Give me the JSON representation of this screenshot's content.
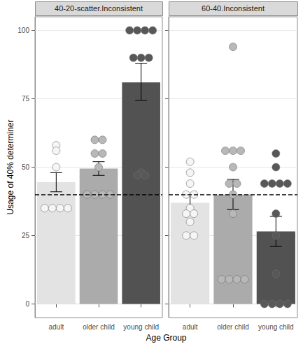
{
  "chart_data": {
    "type": "bar",
    "x_label": "Age Group",
    "y_label": "Usage of 40% determiner",
    "categories": [
      "adult",
      "older child",
      "young child"
    ],
    "colors": [
      "#e3e3e3",
      "#ababab",
      "#525252"
    ],
    "ylim": [
      -5,
      105
    ],
    "yticks": [
      0,
      25,
      50,
      75,
      100
    ],
    "grid": true,
    "reference_line": 40,
    "panels": [
      {
        "title": "40-20-scatter.Inconsistent",
        "values": [
          44.5,
          49.5,
          81
        ],
        "error_low": [
          41,
          47,
          74.5
        ],
        "error_high": [
          48,
          52,
          88
        ],
        "points": [
          [
            58,
            56,
            50,
            35,
            35,
            35,
            35
          ],
          [
            60,
            60,
            55,
            55,
            50,
            40,
            40,
            40,
            40
          ],
          [
            100,
            100,
            100,
            100,
            90,
            90,
            90,
            48,
            47,
            47
          ]
        ]
      },
      {
        "title": "60-40.Inconsistent",
        "values": [
          37,
          40,
          26.5
        ],
        "error_low": [
          34,
          34.5,
          21
        ],
        "error_high": [
          40,
          45.5,
          32
        ],
        "points": [
          [
            52,
            48,
            44,
            40,
            40,
            35,
            33,
            33,
            30,
            25,
            25
          ],
          [
            94,
            56,
            56,
            56,
            50,
            44,
            44,
            40,
            33,
            9,
            9,
            9,
            9
          ],
          [
            55,
            50,
            44,
            44,
            44,
            44,
            33,
            25,
            11,
            0,
            0,
            0,
            0
          ]
        ]
      }
    ]
  }
}
